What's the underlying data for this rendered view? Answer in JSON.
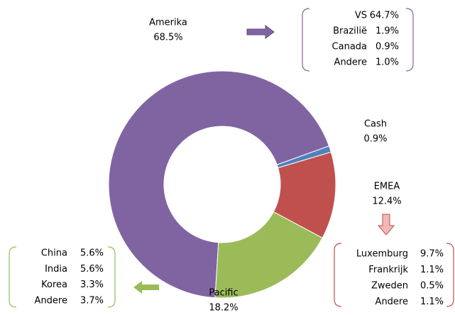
{
  "chart_data": {
    "type": "donut",
    "categories": [
      "Amerika",
      "Cash",
      "EMEA",
      "Pacific"
    ],
    "values": [
      68.5,
      0.9,
      12.4,
      18.2
    ],
    "value_labels": [
      "68.5%",
      "0.9%",
      "12.4%",
      "18.2%"
    ],
    "colors": [
      "#8064a2",
      "#4f81bd",
      "#c0504d",
      "#9bbb59"
    ],
    "details": [
      {
        "names": [
          "VS",
          "Brazilië",
          "Canada",
          "Andere"
        ],
        "values": [
          64.7,
          1.9,
          0.9,
          1.0
        ],
        "value_labels": [
          "64.7%",
          "1.9%",
          "0.9%",
          "1.0%"
        ]
      },
      null,
      {
        "names": [
          "Luxemburg",
          "Frankrijk",
          "Zweden",
          "Andere"
        ],
        "values": [
          9.7,
          1.1,
          0.5,
          1.1
        ],
        "value_labels": [
          "9.7%",
          "1.1%",
          "0.5%",
          "1.1%"
        ]
      },
      {
        "names": [
          "China",
          "India",
          "Korea",
          "Andere"
        ],
        "values": [
          5.6,
          5.6,
          3.3,
          3.7
        ],
        "value_labels": [
          "5.6%",
          "5.6%",
          "3.3%",
          "3.7%"
        ]
      }
    ]
  }
}
